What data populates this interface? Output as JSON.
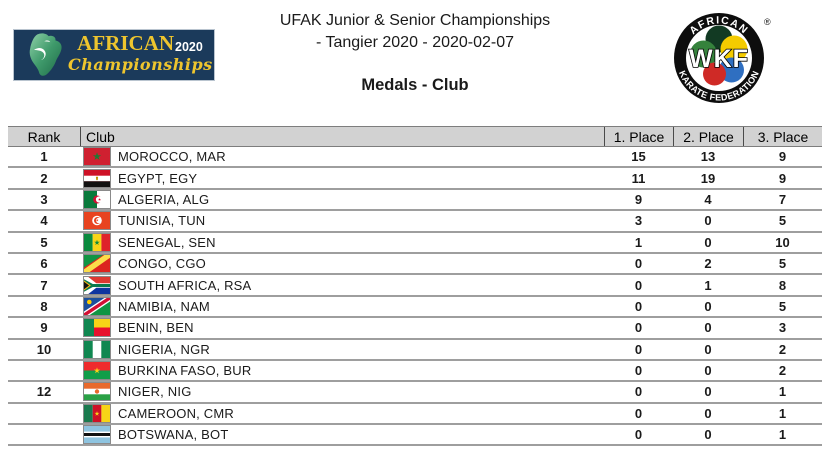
{
  "header": {
    "title_line1": "UFAK Junior & Senior Championships",
    "title_line2": "- Tangier 2020 - 2020-02-07",
    "report_title": "Medals - Club",
    "left_logo": {
      "title": "AFRICAN",
      "year": "2020",
      "subtitle": "Championships",
      "bg_color": "#1b3a5b",
      "gold_color": "#eec52e",
      "map_icon": "africa-map-icon"
    },
    "wkf_logo": {
      "top_text": "AFRICAN",
      "center_text": "WKF",
      "bottom_text": "KARATE FEDERATION",
      "registered_mark": "®",
      "circle_colors": [
        "#123a23",
        "#35823c",
        "#f4cb00",
        "#2f6fc1",
        "#cf2a26"
      ]
    }
  },
  "table": {
    "columns": [
      "Rank",
      "Club",
      "1. Place",
      "2. Place",
      "3. Place"
    ],
    "header_bg": "#d2d2d2",
    "row_line_color": "#9e9e9e",
    "rows": [
      {
        "rank": "1",
        "club": "MOROCCO, MAR",
        "flag": "morocco",
        "first": "15",
        "second": "13",
        "third": "9"
      },
      {
        "rank": "2",
        "club": "EGYPT, EGY",
        "flag": "egypt",
        "first": "11",
        "second": "19",
        "third": "9"
      },
      {
        "rank": "3",
        "club": "ALGERIA, ALG",
        "flag": "algeria",
        "first": "9",
        "second": "4",
        "third": "7"
      },
      {
        "rank": "4",
        "club": "TUNISIA, TUN",
        "flag": "tunisia",
        "first": "3",
        "second": "0",
        "third": "5"
      },
      {
        "rank": "5",
        "club": "SENEGAL, SEN",
        "flag": "senegal",
        "first": "1",
        "second": "0",
        "third": "10"
      },
      {
        "rank": "6",
        "club": "CONGO, CGO",
        "flag": "congo",
        "first": "0",
        "second": "2",
        "third": "5"
      },
      {
        "rank": "7",
        "club": "SOUTH AFRICA, RSA",
        "flag": "south-africa",
        "first": "0",
        "second": "1",
        "third": "8"
      },
      {
        "rank": "8",
        "club": "NAMIBIA, NAM",
        "flag": "namibia",
        "first": "0",
        "second": "0",
        "third": "5"
      },
      {
        "rank": "9",
        "club": "BENIN, BEN",
        "flag": "benin",
        "first": "0",
        "second": "0",
        "third": "3"
      },
      {
        "rank": "10",
        "club": "NIGERIA, NGR",
        "flag": "nigeria",
        "first": "0",
        "second": "0",
        "third": "2"
      },
      {
        "rank": "",
        "club": "BURKINA FASO, BUR",
        "flag": "burkina-faso",
        "first": "0",
        "second": "0",
        "third": "2"
      },
      {
        "rank": "12",
        "club": "NIGER, NIG",
        "flag": "niger",
        "first": "0",
        "second": "0",
        "third": "1"
      },
      {
        "rank": "",
        "club": "CAMEROON, CMR",
        "flag": "cameroon",
        "first": "0",
        "second": "0",
        "third": "1"
      },
      {
        "rank": "",
        "club": "BOTSWANA, BOT",
        "flag": "botswana",
        "first": "0",
        "second": "0",
        "third": "1"
      }
    ]
  }
}
